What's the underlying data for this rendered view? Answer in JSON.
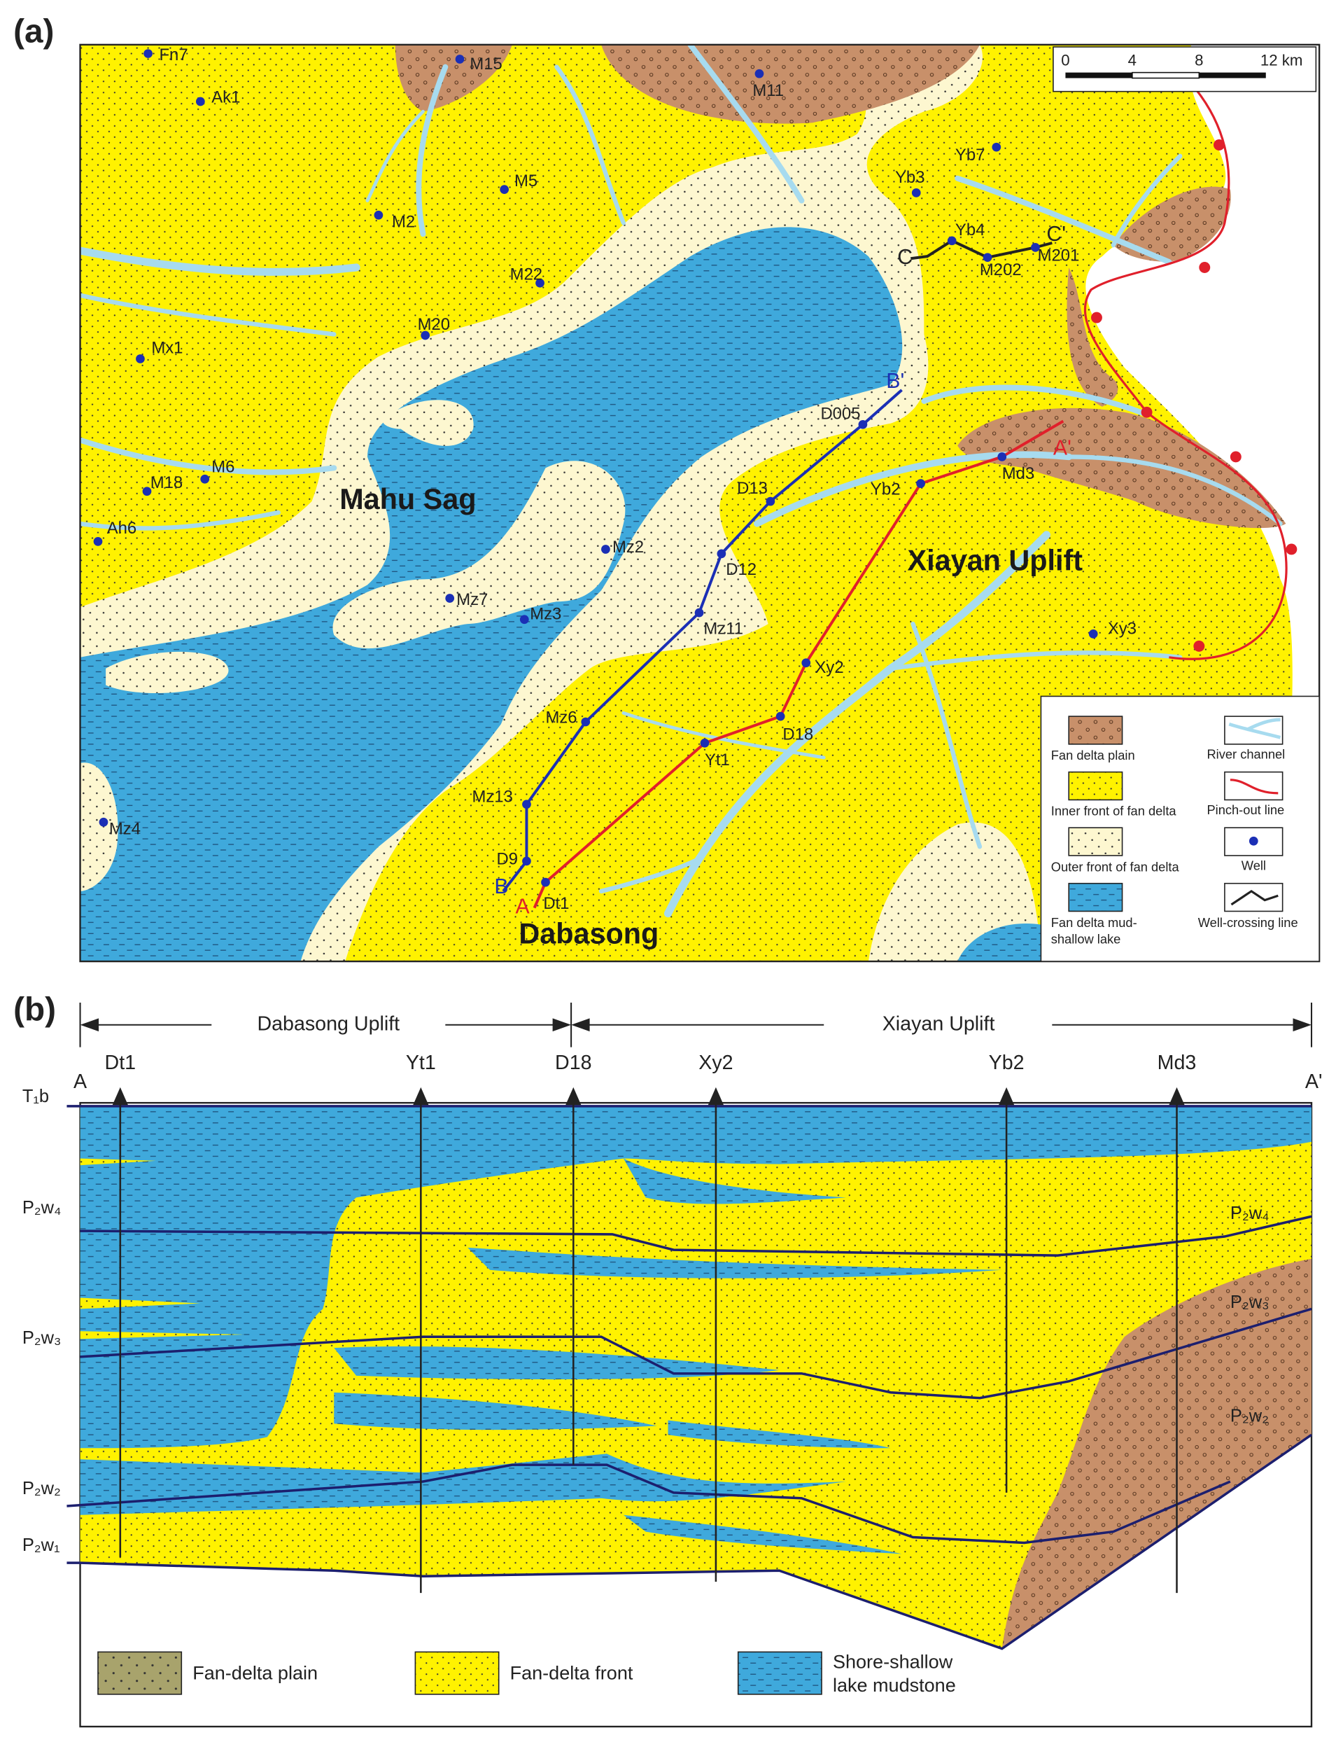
{
  "panel_a": {
    "label": "(a)",
    "scale_bar": [
      "0",
      "4",
      "8",
      "12 km"
    ],
    "regions": [
      "Mahu Sag",
      "Xiayan Uplift",
      "Dabasong"
    ],
    "wells": [
      "Fn7",
      "Ak1",
      "M15",
      "M11",
      "Yb7",
      "Yb3",
      "M5",
      "M2",
      "M22",
      "M20",
      "Mx1",
      "Yb4",
      "M202",
      "M201",
      "D005",
      "Md3",
      "Yb2",
      "D13",
      "M6",
      "M18",
      "Ah6",
      "Mz2",
      "D12",
      "Mz7",
      "Mz3",
      "Mz11",
      "Xy3",
      "Xy2",
      "Mz6",
      "D18",
      "Yt1",
      "Mz13",
      "Mz4",
      "D9",
      "Dt1"
    ],
    "section_line_labels": [
      "A",
      "A'",
      "B",
      "B'",
      "C",
      "C'"
    ],
    "legend": [
      "Fan delta plain",
      "River channel",
      "Inner front of fan delta",
      "Pinch-out line",
      "Outer front of fan delta",
      "Well",
      [
        "Fan delta mud-",
        "shallow lake"
      ],
      "Well-crossing line"
    ]
  },
  "panel_b": {
    "label": "(b)",
    "uplifts": [
      "Dabasong Uplift",
      "Xiayan Uplift"
    ],
    "ends": [
      "A",
      "A'"
    ],
    "wells": [
      "Dt1",
      "Yt1",
      "D18",
      "Xy2",
      "Yb2",
      "Md3"
    ],
    "horizons_left": [
      "T₁b",
      "P₂w₄",
      "P₂w₃",
      "P₂w₂",
      "P₂w₁"
    ],
    "horizons_right": [
      "P₂w₄",
      "P₂w₃",
      "P₂w₂"
    ],
    "legend": [
      "Fan-delta plain",
      "Fan-delta front",
      [
        "Shore-shallow",
        "lake mudstone"
      ]
    ]
  }
}
